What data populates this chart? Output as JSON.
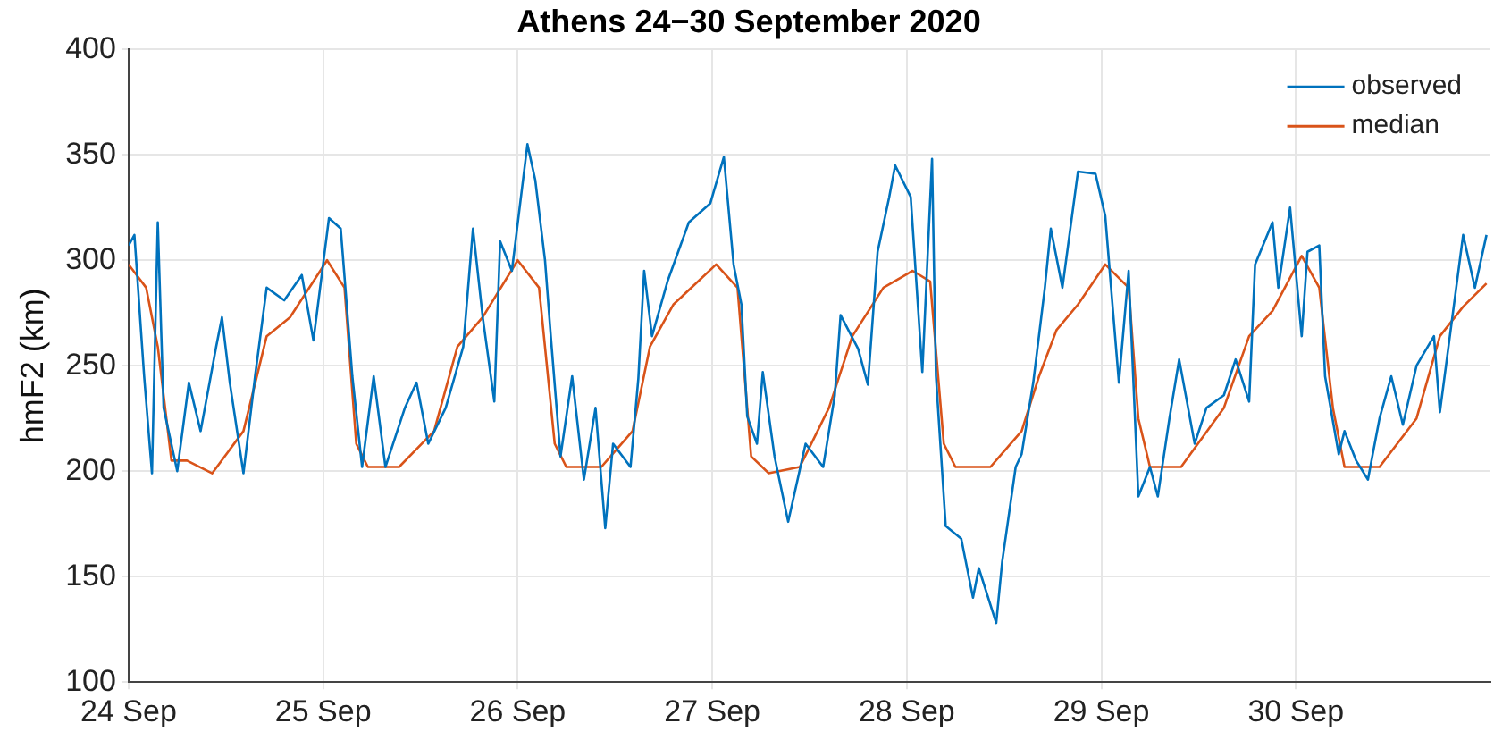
{
  "chart_data": {
    "type": "line",
    "title": "Athens 24−30 September 2020",
    "ylabel": "hmF2 (km)",
    "xlim": [
      "2020-09-24",
      "2020-10-01"
    ],
    "xticks": [
      {
        "value": "2020-09-24",
        "label": "24 Sep"
      },
      {
        "value": "2020-09-25",
        "label": "25 Sep"
      },
      {
        "value": "2020-09-26",
        "label": "26 Sep"
      },
      {
        "value": "2020-09-27",
        "label": "27 Sep"
      },
      {
        "value": "2020-09-28",
        "label": "28 Sep"
      },
      {
        "value": "2020-09-29",
        "label": "29 Sep"
      },
      {
        "value": "2020-09-30",
        "label": "30 Sep"
      }
    ],
    "ylim": [
      100,
      400
    ],
    "yticks": [
      100,
      150,
      200,
      250,
      300,
      350,
      400
    ],
    "grid": true,
    "legend": "top right",
    "marker": "none",
    "line_style": "solid",
    "series": [
      {
        "name": "observed",
        "color": "#0072bd",
        "x": [
          "2020-09-24T00:00",
          "2020-09-24T00:43",
          "2020-09-24T01:55",
          "2020-09-24T02:53",
          "2020-09-24T03:36",
          "2020-09-24T04:19",
          "2020-09-24T06:00",
          "2020-09-24T07:26",
          "2020-09-24T08:53",
          "2020-09-24T10:48",
          "2020-09-24T11:31",
          "2020-09-24T12:29",
          "2020-09-24T14:10",
          "2020-09-24T15:36",
          "2020-09-24T17:02",
          "2020-09-24T19:12",
          "2020-09-24T21:22",
          "2020-09-24T22:48",
          "2020-09-25T00:43",
          "2020-09-25T02:10",
          "2020-09-25T03:36",
          "2020-09-25T04:48",
          "2020-09-25T06:14",
          "2020-09-25T07:41",
          "2020-09-25T10:05",
          "2020-09-25T11:31",
          "2020-09-25T12:58",
          "2020-09-25T15:07",
          "2020-09-25T17:17",
          "2020-09-25T18:29",
          "2020-09-25T19:41",
          "2020-09-25T21:07",
          "2020-09-25T21:50",
          "2020-09-25T23:17",
          "2020-09-26T01:12",
          "2020-09-26T02:10",
          "2020-09-26T03:22",
          "2020-09-26T04:05",
          "2020-09-26T05:17",
          "2020-09-26T06:43",
          "2020-09-26T08:10",
          "2020-09-26T09:36",
          "2020-09-26T10:48",
          "2020-09-26T11:46",
          "2020-09-26T13:55",
          "2020-09-26T14:53",
          "2020-09-26T15:36",
          "2020-09-26T16:34",
          "2020-09-26T18:29",
          "2020-09-26T21:07",
          "2020-09-26T23:46",
          "2020-09-27T01:26",
          "2020-09-27T02:38",
          "2020-09-27T03:36",
          "2020-09-27T04:19",
          "2020-09-27T05:31",
          "2020-09-27T06:14",
          "2020-09-27T07:41",
          "2020-09-27T09:22",
          "2020-09-27T11:31",
          "2020-09-27T13:41",
          "2020-09-27T15:07",
          "2020-09-27T15:50",
          "2020-09-27T18:00",
          "2020-09-27T19:12",
          "2020-09-27T20:24",
          "2020-09-27T21:50",
          "2020-09-27T22:34",
          "2020-09-28T00:29",
          "2020-09-28T01:55",
          "2020-09-28T03:07",
          "2020-09-28T03:36",
          "2020-09-28T04:48",
          "2020-09-28T06:43",
          "2020-09-28T08:10",
          "2020-09-28T08:53",
          "2020-09-28T11:02",
          "2020-09-28T11:46",
          "2020-09-28T13:26",
          "2020-09-28T14:10",
          "2020-09-28T15:36",
          "2020-09-28T17:02",
          "2020-09-28T17:46",
          "2020-09-28T19:12",
          "2020-09-28T21:07",
          "2020-09-28T23:17",
          "2020-09-29T00:29",
          "2020-09-29T01:12",
          "2020-09-29T02:10",
          "2020-09-29T03:22",
          "2020-09-29T04:34",
          "2020-09-29T06:00",
          "2020-09-29T06:58",
          "2020-09-29T08:24",
          "2020-09-29T09:36",
          "2020-09-29T11:31",
          "2020-09-29T12:58",
          "2020-09-29T15:07",
          "2020-09-29T16:34",
          "2020-09-29T18:14",
          "2020-09-29T18:58",
          "2020-09-29T21:07",
          "2020-09-29T21:50",
          "2020-09-29T23:17",
          "2020-09-30T00:43",
          "2020-09-30T01:26",
          "2020-09-30T02:53",
          "2020-09-30T03:36",
          "2020-09-30T05:17",
          "2020-09-30T06:00",
          "2020-09-30T07:26",
          "2020-09-30T08:53",
          "2020-09-30T10:19",
          "2020-09-30T11:46",
          "2020-09-30T13:12",
          "2020-09-30T14:53",
          "2020-09-30T17:02",
          "2020-09-30T17:46",
          "2020-09-30T20:38",
          "2020-09-30T22:05",
          "2020-09-30T23:31"
        ],
        "values": [
          307,
          312,
          245,
          199,
          318,
          230,
          200,
          242,
          219,
          259,
          273,
          242,
          199,
          245,
          287,
          281,
          293,
          262,
          320,
          315,
          245,
          202,
          245,
          202,
          230,
          242,
          213,
          230,
          259,
          315,
          273,
          233,
          309,
          295,
          355,
          338,
          300,
          264,
          207,
          245,
          196,
          230,
          173,
          213,
          202,
          244,
          295,
          264,
          290,
          318,
          327,
          349,
          298,
          279,
          226,
          213,
          247,
          207,
          176,
          213,
          202,
          236,
          274,
          258,
          241,
          304,
          330,
          345,
          330,
          247,
          348,
          245,
          174,
          168,
          140,
          154,
          128,
          157,
          202,
          208,
          242,
          287,
          315,
          287,
          342,
          341,
          321,
          287,
          242,
          295,
          188,
          202,
          188,
          225,
          253,
          213,
          230,
          236,
          253,
          233,
          298,
          318,
          287,
          325,
          264,
          304,
          307,
          245,
          208,
          219,
          205,
          196,
          225,
          245,
          222,
          250,
          264,
          228,
          312,
          287,
          312
        ]
      },
      {
        "name": "median",
        "color": "#d95319",
        "x": [
          "2020-09-24T00:00",
          "2020-09-24T02:10",
          "2020-09-24T03:36",
          "2020-09-24T05:17",
          "2020-09-24T07:12",
          "2020-09-24T10:19",
          "2020-09-24T14:10",
          "2020-09-24T17:02",
          "2020-09-24T19:55",
          "2020-09-25T00:29",
          "2020-09-25T02:38",
          "2020-09-25T04:05",
          "2020-09-25T05:31",
          "2020-09-25T09:22",
          "2020-09-25T13:41",
          "2020-09-25T16:34",
          "2020-09-25T19:41",
          "2020-09-26T00:00",
          "2020-09-26T02:38",
          "2020-09-26T04:34",
          "2020-09-26T06:00",
          "2020-09-26T10:19",
          "2020-09-26T14:10",
          "2020-09-26T16:19",
          "2020-09-26T19:12",
          "2020-09-27T00:29",
          "2020-09-27T03:07",
          "2020-09-27T04:48",
          "2020-09-27T06:58",
          "2020-09-27T10:48",
          "2020-09-27T14:24",
          "2020-09-27T17:17",
          "2020-09-27T21:07",
          "2020-09-28T00:43",
          "2020-09-28T02:53",
          "2020-09-28T04:34",
          "2020-09-28T06:00",
          "2020-09-28T10:19",
          "2020-09-28T14:10",
          "2020-09-28T16:19",
          "2020-09-28T18:29",
          "2020-09-28T21:07",
          "2020-09-29T00:29",
          "2020-09-29T03:22",
          "2020-09-29T04:34",
          "2020-09-29T06:00",
          "2020-09-29T09:50",
          "2020-09-29T15:07",
          "2020-09-29T18:14",
          "2020-09-29T21:07",
          "2020-09-30T00:43",
          "2020-09-30T02:53",
          "2020-09-30T04:34",
          "2020-09-30T06:00",
          "2020-09-30T10:19",
          "2020-09-30T14:53",
          "2020-09-30T17:46",
          "2020-09-30T20:38",
          "2020-09-30T23:31"
        ],
        "values": [
          298,
          287,
          259,
          205,
          205,
          199,
          219,
          264,
          273,
          300,
          287,
          213,
          202,
          202,
          219,
          259,
          273,
          300,
          287,
          213,
          202,
          202,
          219,
          259,
          279,
          298,
          287,
          207,
          199,
          202,
          230,
          264,
          287,
          295,
          290,
          213,
          202,
          202,
          219,
          245,
          267,
          279,
          298,
          287,
          225,
          202,
          202,
          230,
          264,
          276,
          302,
          287,
          230,
          202,
          202,
          225,
          264,
          278,
          289
        ]
      }
    ]
  }
}
